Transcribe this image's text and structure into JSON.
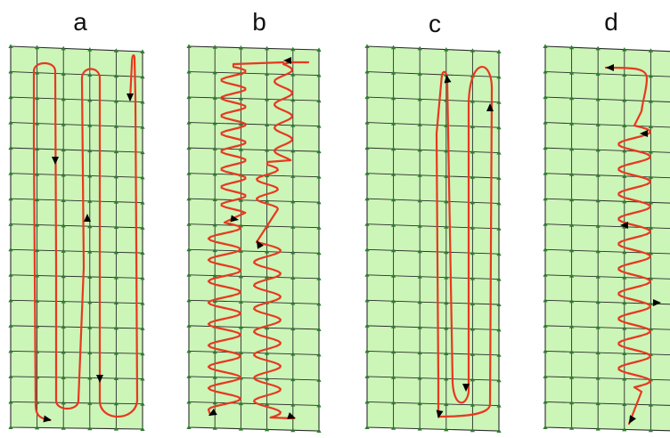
{
  "panels": [
    {
      "label": "a"
    },
    {
      "label": "b"
    },
    {
      "label": "c"
    },
    {
      "label": "d"
    }
  ],
  "colors": {
    "field_fill": "#ccf5b8",
    "grid_line": "#2b2b2b",
    "node": "#2e7d2e",
    "track": "#e8381f",
    "arrow": "#000000"
  }
}
